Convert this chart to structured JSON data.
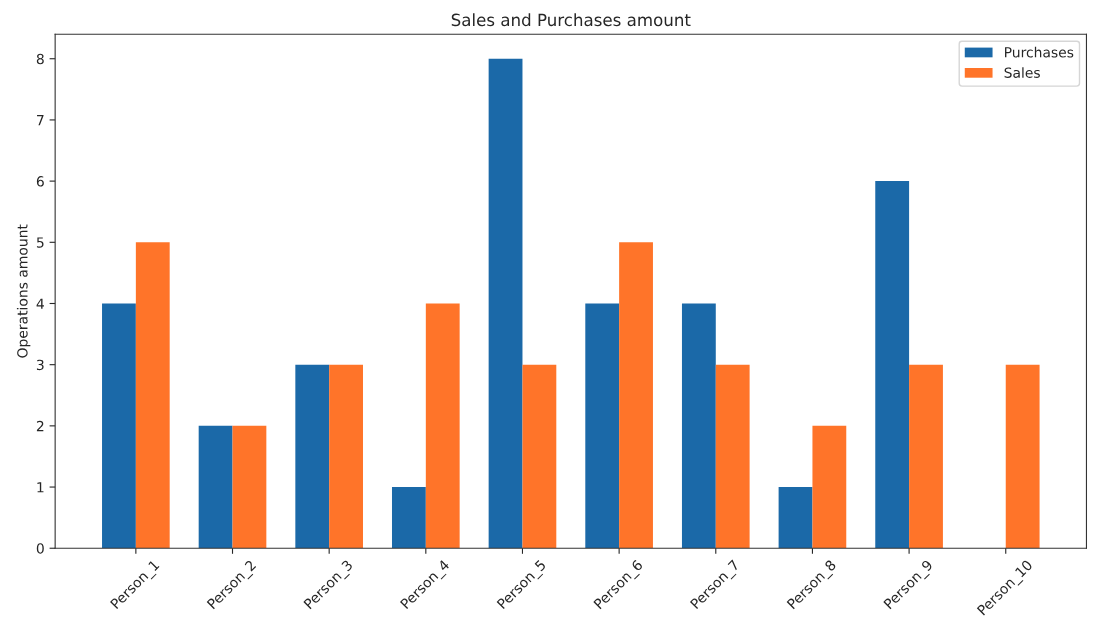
{
  "chart_data": {
    "type": "bar",
    "title": "Sales and Purchases amount",
    "ylabel": "Operations amount",
    "categories": [
      "Person_1",
      "Person_2",
      "Person_3",
      "Person_4",
      "Person_5",
      "Person_6",
      "Person_7",
      "Person_8",
      "Person_9",
      "Person_10"
    ],
    "series": [
      {
        "name": "Purchases",
        "color": "#1b69a8",
        "values": [
          4,
          2,
          3,
          1,
          8,
          4,
          4,
          1,
          6,
          null
        ]
      },
      {
        "name": "Sales",
        "color": "#ff7429",
        "values": [
          5,
          2,
          3,
          4,
          3,
          5,
          3,
          2,
          3,
          3
        ]
      }
    ],
    "ylim": [
      0,
      8.4
    ],
    "yticks": [
      0,
      1,
      2,
      3,
      4,
      5,
      6,
      7,
      8
    ],
    "grid": false,
    "legend": "top right"
  }
}
